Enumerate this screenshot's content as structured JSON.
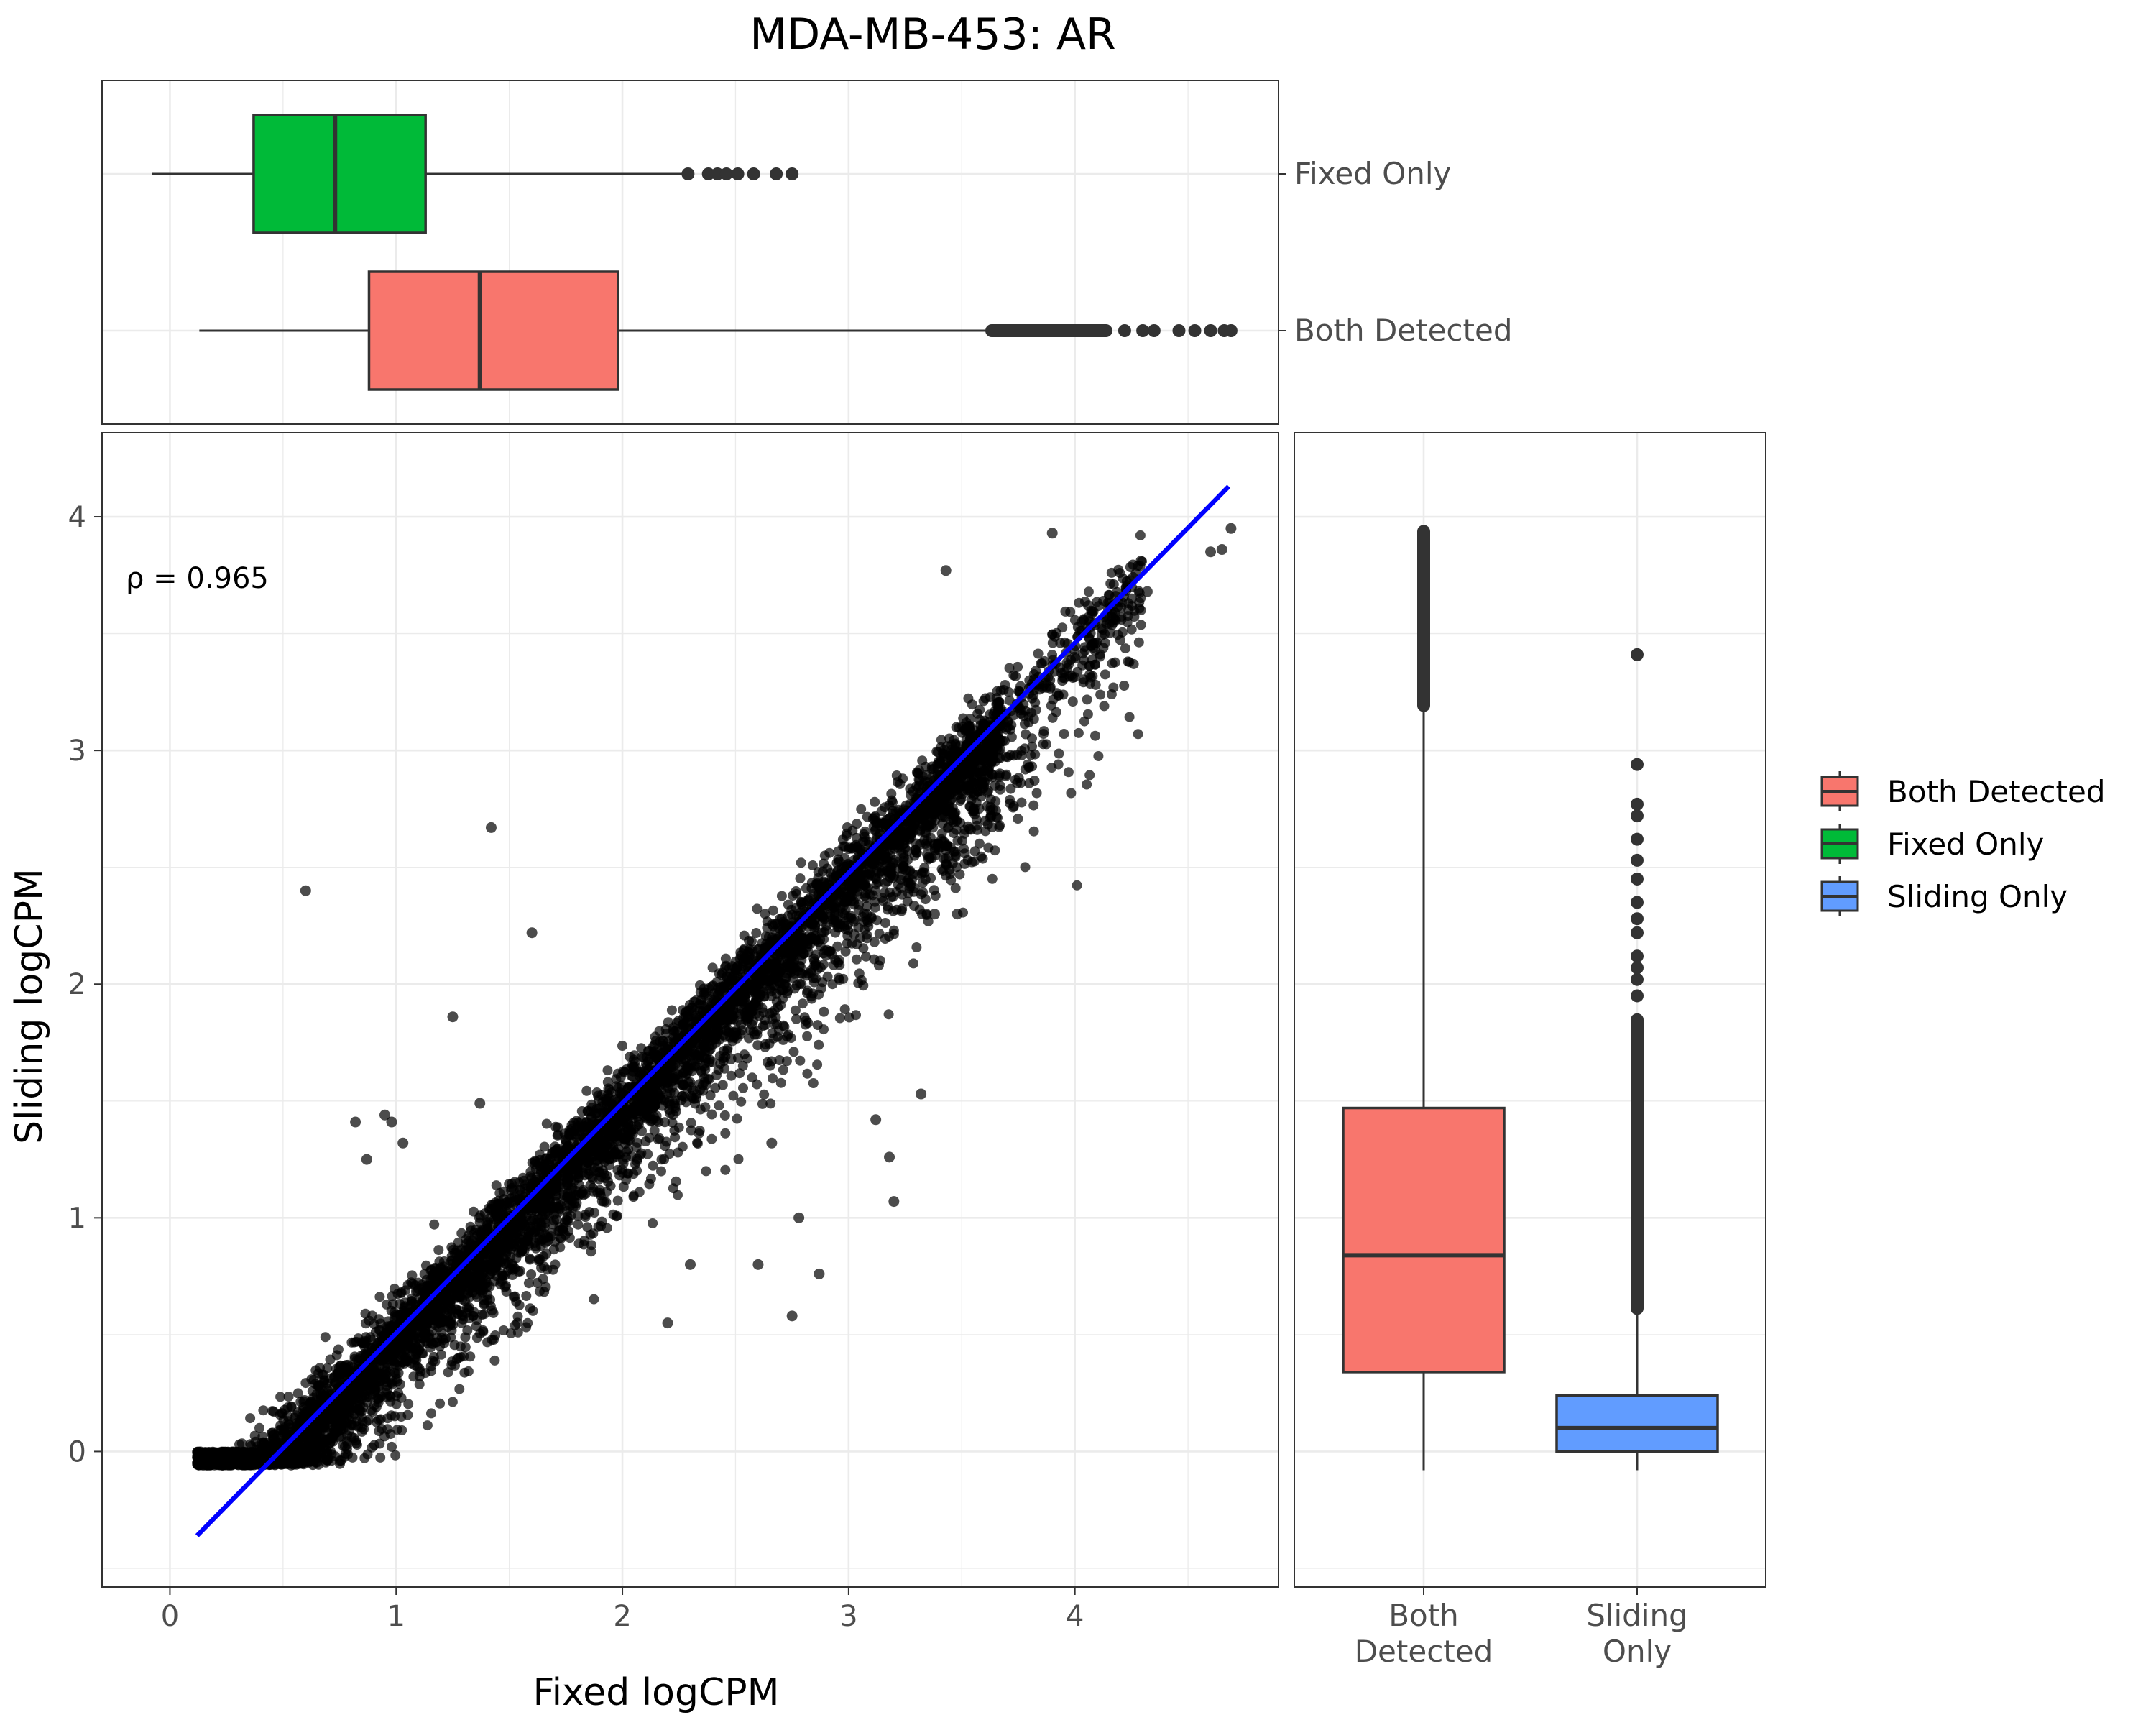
{
  "title": "MDA-MB-453: AR",
  "chart_data": [
    {
      "panel": "main-scatter",
      "type": "scatter",
      "xlabel": "Fixed logCPM",
      "ylabel": "Sliding logCPM",
      "xlim": [
        -0.3,
        4.9
      ],
      "ylim": [
        -0.58,
        4.36
      ],
      "x_ticks": [
        0,
        1,
        2,
        3,
        4
      ],
      "y_ticks": [
        0,
        1,
        2,
        3,
        4
      ],
      "x_tick_labels": [
        "0",
        "1",
        "2",
        "3",
        "4"
      ],
      "y_tick_labels": [
        "0",
        "1",
        "2",
        "3",
        "4"
      ],
      "grid": true,
      "annotation": "ρ = 0.965",
      "point_color": "#000000",
      "fit_line": {
        "color": "#0000ff",
        "x": [
          0.12,
          4.68
        ],
        "y": [
          -0.36,
          4.13
        ]
      },
      "dense_band": {
        "x_range": [
          0.1,
          3.6
        ],
        "note": "tens of thousands of points along the fit line"
      },
      "outliers": [
        [
          0.6,
          2.4
        ],
        [
          1.42,
          2.67
        ],
        [
          1.6,
          2.22
        ],
        [
          1.25,
          1.86
        ],
        [
          0.82,
          1.41
        ],
        [
          0.95,
          1.44
        ],
        [
          0.98,
          1.41
        ],
        [
          0.87,
          1.25
        ],
        [
          1.03,
          1.32
        ],
        [
          1.37,
          1.49
        ],
        [
          3.43,
          3.77
        ],
        [
          3.9,
          3.93
        ],
        [
          4.69,
          3.95
        ],
        [
          4.6,
          3.85
        ],
        [
          4.65,
          3.86
        ],
        [
          4.32,
          3.68
        ],
        [
          4.18,
          3.66
        ],
        [
          4.06,
          3.62
        ],
        [
          3.38,
          2.3
        ],
        [
          3.48,
          2.3
        ],
        [
          3.3,
          2.6
        ],
        [
          3.32,
          1.53
        ],
        [
          3.12,
          1.42
        ],
        [
          3.18,
          1.26
        ],
        [
          3.2,
          1.07
        ],
        [
          2.87,
          0.76
        ],
        [
          2.75,
          0.58
        ],
        [
          2.6,
          0.8
        ],
        [
          2.78,
          1.0
        ],
        [
          2.66,
          1.32
        ],
        [
          2.48,
          1.68
        ],
        [
          2.3,
          0.8
        ],
        [
          2.2,
          0.55
        ]
      ]
    },
    {
      "panel": "top-boxplot",
      "type": "box",
      "orientation": "horizontal",
      "categories": [
        "Fixed Only",
        "Both Detected"
      ],
      "boxes": [
        {
          "name": "Fixed Only",
          "color": "#00ba38",
          "whisker_low": -0.08,
          "q1": 0.37,
          "median": 0.73,
          "q3": 1.13,
          "whisker_high": 2.28,
          "outliers": [
            2.29,
            2.38,
            2.42,
            2.46,
            2.51,
            2.58,
            2.68,
            2.75
          ]
        },
        {
          "name": "Both Detected",
          "color": "#f8766d",
          "whisker_low": 0.13,
          "q1": 0.88,
          "median": 1.37,
          "q3": 1.98,
          "whisker_high": 3.62,
          "outlier_band": [
            3.62,
            4.15
          ],
          "outliers": [
            4.22,
            4.3,
            4.35,
            4.46,
            4.53,
            4.6,
            4.66,
            4.69
          ]
        }
      ]
    },
    {
      "panel": "right-boxplot",
      "type": "box",
      "orientation": "vertical",
      "categories": [
        "Both Detected",
        "Sliding Only"
      ],
      "category_labels": [
        [
          "Both",
          "Detected"
        ],
        [
          "Sliding",
          "Only"
        ]
      ],
      "boxes": [
        {
          "name": "Both Detected",
          "color": "#f8766d",
          "whisker_low": -0.08,
          "q1": 0.34,
          "median": 0.84,
          "q3": 1.47,
          "whisker_high": 3.18,
          "outlier_band": [
            3.18,
            3.95
          ]
        },
        {
          "name": "Sliding Only",
          "color": "#619cff",
          "whisker_low": -0.08,
          "q1": 0.0,
          "median": 0.1,
          "q3": 0.24,
          "whisker_high": 0.6,
          "outlier_band": [
            0.6,
            1.86
          ],
          "outliers": [
            1.95,
            2.02,
            2.07,
            2.12,
            2.22,
            2.28,
            2.35,
            2.45,
            2.53,
            2.62,
            2.72,
            2.77,
            2.94,
            3.41
          ]
        }
      ]
    }
  ],
  "legend": {
    "placement": "right",
    "items": [
      {
        "label": "Both Detected",
        "color": "#f8766d"
      },
      {
        "label": "Fixed Only",
        "color": "#00ba38"
      },
      {
        "label": "Sliding Only",
        "color": "#619cff"
      }
    ]
  }
}
